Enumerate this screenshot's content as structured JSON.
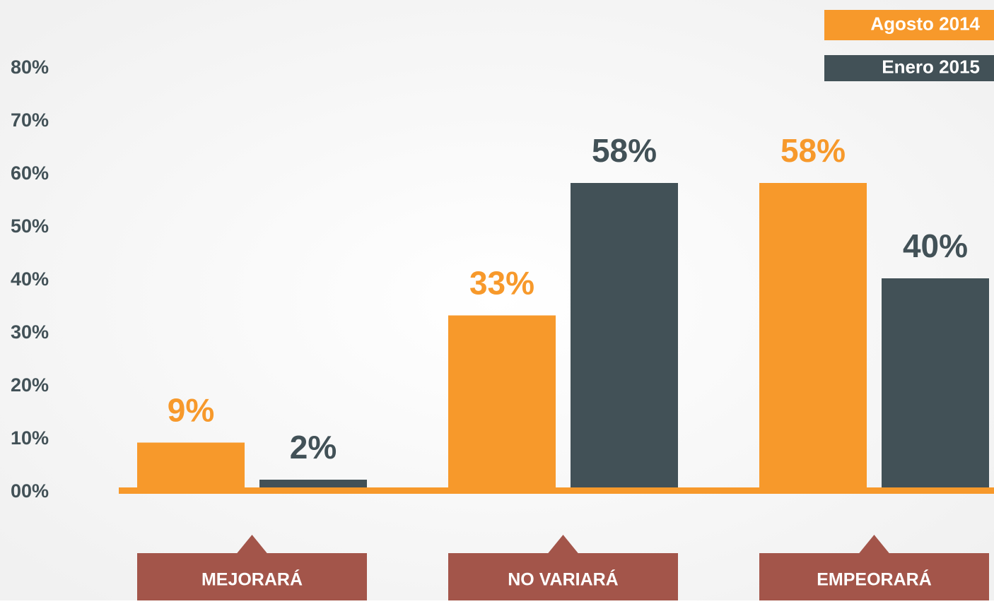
{
  "chart_data": {
    "type": "bar",
    "categories": [
      "MEJORARÁ",
      "NO VARIARÁ",
      "EMPEORARÁ"
    ],
    "series": [
      {
        "name": "Agosto 2014",
        "color": "#f7992b",
        "values": [
          9,
          33,
          58
        ],
        "value_labels": [
          "9%",
          "33%",
          "58%"
        ]
      },
      {
        "name": "Enero 2015",
        "color": "#425157",
        "values": [
          2,
          58,
          40
        ],
        "value_labels": [
          "2%",
          "58%",
          "40%"
        ]
      }
    ],
    "ylim": [
      0,
      80
    ],
    "yticks": [
      {
        "value": 0,
        "label": "00%"
      },
      {
        "value": 10,
        "label": "10%"
      },
      {
        "value": 20,
        "label": "20%"
      },
      {
        "value": 30,
        "label": "30%"
      },
      {
        "value": 40,
        "label": "40%"
      },
      {
        "value": 50,
        "label": "50%"
      },
      {
        "value": 60,
        "label": "60%"
      },
      {
        "value": 70,
        "label": "70%"
      },
      {
        "value": 80,
        "label": "80%"
      }
    ],
    "legend": "top-right",
    "category_color": "#a3554a"
  }
}
